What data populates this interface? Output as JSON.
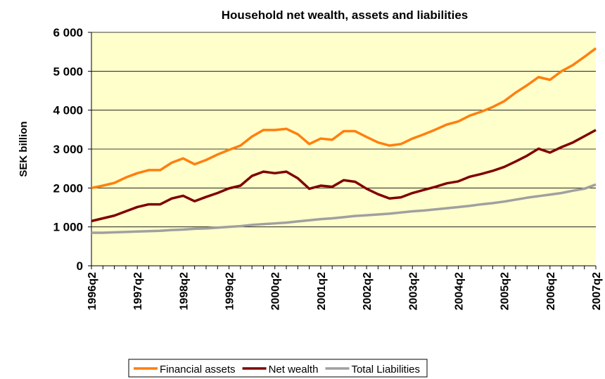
{
  "chart_data": {
    "type": "line",
    "title": "Household net wealth, assets and liabilities",
    "y_label": "SEK billion",
    "categories": [
      "1996q2",
      null,
      null,
      null,
      "1997q2",
      null,
      null,
      null,
      "1998q2",
      null,
      null,
      null,
      "1999q2",
      null,
      null,
      null,
      "2000q2",
      null,
      null,
      null,
      "2001q2",
      null,
      null,
      null,
      "2002q2",
      null,
      null,
      null,
      "2003q2",
      null,
      null,
      null,
      "2004q2",
      null,
      null,
      null,
      "2005q2",
      null,
      null,
      null,
      "2006q2",
      null,
      null,
      null,
      "2007q2"
    ],
    "series": [
      {
        "name": "Financial assets",
        "color": "#ff7f0e",
        "values": [
          2000,
          2060,
          2130,
          2270,
          2380,
          2460,
          2460,
          2650,
          2760,
          2610,
          2720,
          2860,
          2980,
          3090,
          3320,
          3490,
          3490,
          3520,
          3380,
          3130,
          3270,
          3240,
          3460,
          3460,
          3310,
          3170,
          3090,
          3130,
          3270,
          3380,
          3500,
          3630,
          3710,
          3860,
          3960,
          4080,
          4230,
          4450,
          4640,
          4850,
          4780,
          5000,
          5160,
          5370,
          5590
        ]
      },
      {
        "name": "Net wealth",
        "color": "#800000",
        "values": [
          1150,
          1220,
          1290,
          1400,
          1510,
          1580,
          1580,
          1730,
          1800,
          1660,
          1770,
          1870,
          1990,
          2060,
          2310,
          2420,
          2380,
          2420,
          2250,
          1980,
          2060,
          2030,
          2200,
          2160,
          1980,
          1840,
          1730,
          1760,
          1870,
          1950,
          2030,
          2120,
          2170,
          2290,
          2360,
          2440,
          2540,
          2680,
          2830,
          3010,
          2910,
          3050,
          3170,
          3330,
          3490
        ]
      },
      {
        "name": "Total Liabilities",
        "color": "#a0a0a0",
        "values": [
          850,
          850,
          860,
          870,
          880,
          890,
          900,
          920,
          930,
          950,
          960,
          980,
          1000,
          1020,
          1050,
          1070,
          1090,
          1110,
          1140,
          1170,
          1200,
          1220,
          1250,
          1280,
          1300,
          1320,
          1340,
          1370,
          1400,
          1420,
          1450,
          1480,
          1510,
          1540,
          1580,
          1610,
          1650,
          1700,
          1750,
          1790,
          1830,
          1870,
          1930,
          1980,
          2090
        ]
      }
    ],
    "ylim": [
      0,
      6000
    ],
    "yticks": [
      0,
      {
        "value": 1000,
        "label": "1 000"
      },
      {
        "value": 2000,
        "label": "2 000"
      },
      {
        "value": 3000,
        "label": "3 000"
      },
      {
        "value": 4000,
        "label": "4 000"
      },
      {
        "value": 5000,
        "label": "5 000"
      },
      {
        "value": 6000,
        "label": "6 000"
      }
    ],
    "grid": true,
    "legend": "bottom"
  }
}
